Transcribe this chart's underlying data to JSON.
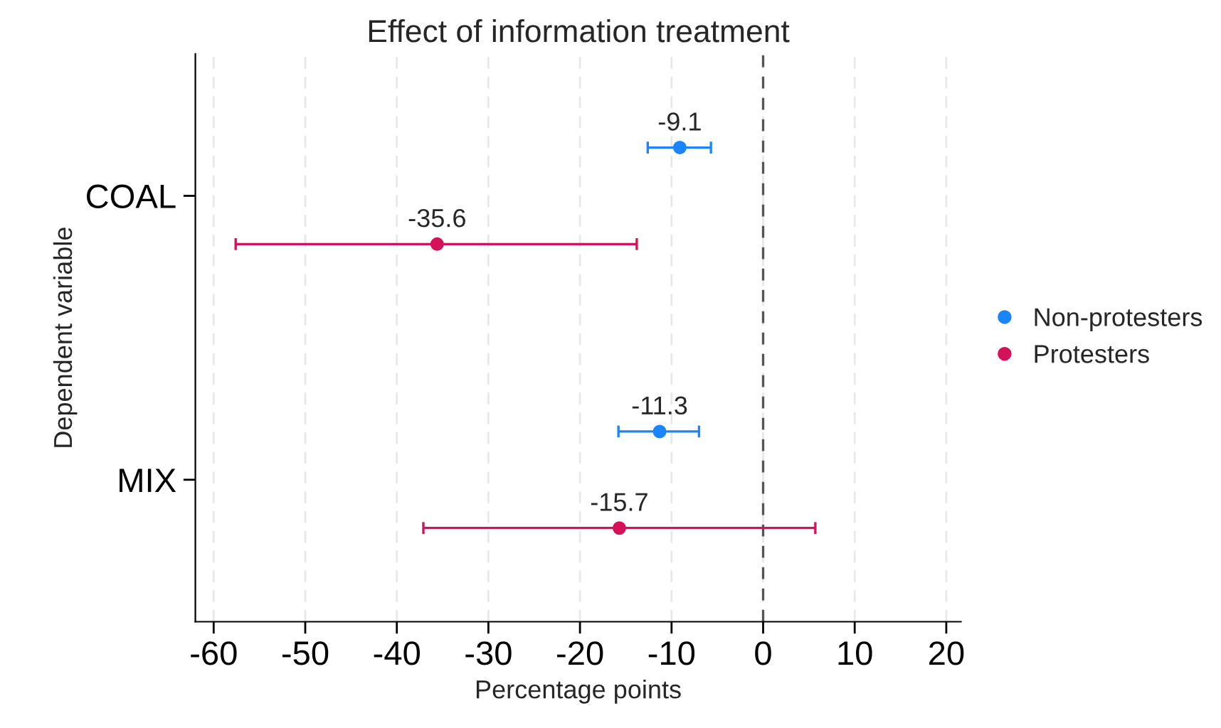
{
  "chart_data": {
    "type": "scatter",
    "orientation": "horizontal",
    "title": "Effect of information treatment",
    "xlabel": "Percentage points",
    "ylabel": "Dependent variable",
    "categories": [
      "COAL",
      "MIX"
    ],
    "series": [
      {
        "name": "Non-protesters",
        "color": "#1a85ff",
        "values": [
          -9.1,
          -11.3
        ],
        "errors": [
          [
            -12.6,
            -5.7
          ],
          [
            -15.8,
            -7.0
          ]
        ]
      },
      {
        "name": "Protesters",
        "color": "#d41159",
        "values": [
          -35.6,
          -15.7
        ],
        "errors": [
          [
            -57.6,
            -13.8
          ],
          [
            -37.1,
            5.7
          ]
        ]
      }
    ],
    "xlim": [
      -62,
      21.6
    ],
    "xticks": [
      -60,
      -50,
      -40,
      -30,
      -20,
      -10,
      0,
      10,
      20
    ],
    "ref_lines": [
      {
        "axis": "x",
        "value": 0,
        "color": "#555555",
        "line_style": "dashed"
      }
    ],
    "data_labels": true,
    "grid": "x",
    "legend": "right",
    "marker": "circle"
  }
}
